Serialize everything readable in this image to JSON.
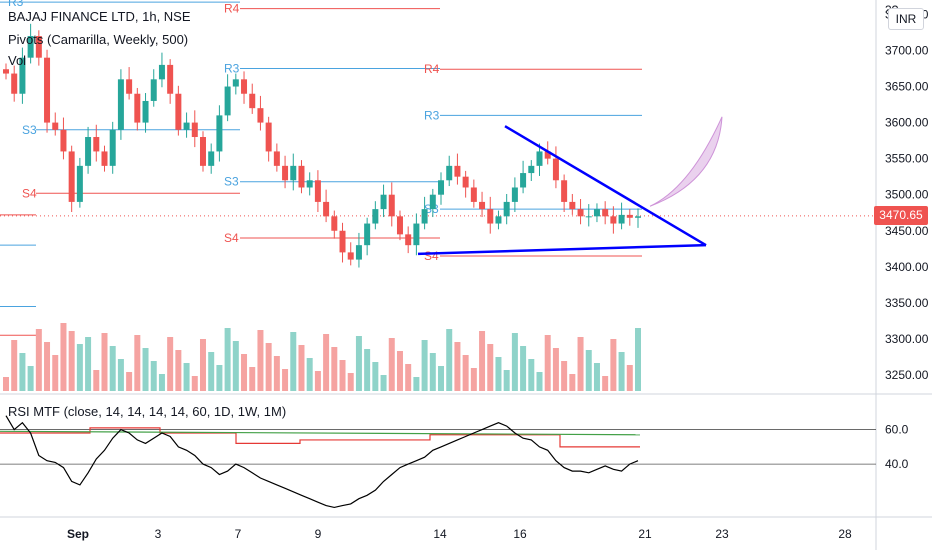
{
  "header": {
    "symbol_line": "BAJAJ FINANCE LTD, 1h, NSE",
    "pivots_line": "Pivots (Camarilla, Weekly, 500)",
    "vol_line": "Vol"
  },
  "currency_button": "INR",
  "last_price": "3470.65",
  "colors": {
    "up": "#26a69a",
    "down": "#ef5350",
    "vol_up": "#8fd3c9",
    "vol_down": "#f5a3a1",
    "resistance": "#ef5350",
    "support_blue": "#4aa3df",
    "trendline": "#0000ff",
    "projection_fill": "#e1bee7",
    "projection_stroke": "#ce93d8",
    "rsi_line": "#000000",
    "rsi_red": "#e53935",
    "rsi_green": "#43a047"
  },
  "price_axis": {
    "ticks": [
      "3750.00",
      "3700.00",
      "3650.00",
      "3600.00",
      "3550.00",
      "3500.00",
      "3450.00",
      "3400.00",
      "3350.00",
      "3300.00",
      "3250.00"
    ],
    "top_partial": "3?",
    "ylim": [
      3225,
      3770
    ]
  },
  "rsi_axis": {
    "ticks": [
      "60.0",
      "40.0"
    ]
  },
  "rsi_legend": "RSI MTF (close, 14, 14, 14, 14, 60, 1D, 1W, 1M)",
  "time_axis": {
    "labels": [
      "Sep",
      "3",
      "7",
      "9",
      "14",
      "16",
      "21",
      "23",
      "28"
    ]
  },
  "pivot_labels": {
    "R3": "R3",
    "R4": "R4",
    "S3": "S3",
    "S4": "S4"
  },
  "chart_data": {
    "type": "candlestick",
    "pivots": [
      {
        "label": "R4",
        "value": 3758,
        "week": 1
      },
      {
        "label": "R3",
        "value": 3767,
        "week": 1
      },
      {
        "label": "S3",
        "value": 3590,
        "week": 1
      },
      {
        "label": "S4",
        "value": 3502,
        "week": 1
      },
      {
        "label": "R4",
        "value": 3674,
        "week": 2
      },
      {
        "label": "R3",
        "value": 3674,
        "week": 2
      },
      {
        "label": "S3",
        "value": 3518,
        "week": 2
      },
      {
        "label": "S4",
        "value": 3440,
        "week": 2
      },
      {
        "label": "R3",
        "value": 3610,
        "week": 3
      },
      {
        "label": "S3",
        "value": 3480,
        "week": 3
      },
      {
        "label": "S4",
        "value": 3415,
        "week": 3
      }
    ],
    "closes": [
      3668,
      3640,
      3690,
      3720,
      3690,
      3600,
      3590,
      3560,
      3490,
      3540,
      3580,
      3560,
      3540,
      3590,
      3660,
      3640,
      3600,
      3630,
      3660,
      3680,
      3640,
      3590,
      3600,
      3580,
      3540,
      3560,
      3610,
      3650,
      3660,
      3640,
      3620,
      3600,
      3560,
      3540,
      3520,
      3540,
      3510,
      3520,
      3490,
      3470,
      3450,
      3420,
      3410,
      3430,
      3460,
      3480,
      3500,
      3470,
      3445,
      3430,
      3460,
      3480,
      3500,
      3520,
      3540,
      3525,
      3510,
      3490,
      3480,
      3460,
      3470,
      3490,
      3510,
      3530,
      3540,
      3560,
      3550,
      3520,
      3490,
      3480,
      3470,
      3470,
      3480,
      3470,
      3460,
      3472,
      3468,
      3470
    ]
  },
  "rsi_data": {
    "values": [
      68,
      60,
      64,
      58,
      45,
      42,
      41,
      38,
      30,
      28,
      35,
      43,
      48,
      55,
      60,
      58,
      54,
      52,
      55,
      58,
      56,
      50,
      48,
      45,
      40,
      38,
      34,
      36,
      40,
      38,
      35,
      32,
      30,
      28,
      26,
      24,
      22,
      20,
      18,
      16,
      15,
      16,
      17,
      20,
      22,
      25,
      30,
      34,
      38,
      40,
      42,
      44,
      48,
      50,
      52,
      54,
      56,
      58,
      60,
      62,
      64,
      62,
      58,
      55,
      54,
      50,
      48,
      42,
      38,
      36,
      36,
      35,
      37,
      39,
      37,
      36,
      40,
      42
    ]
  }
}
